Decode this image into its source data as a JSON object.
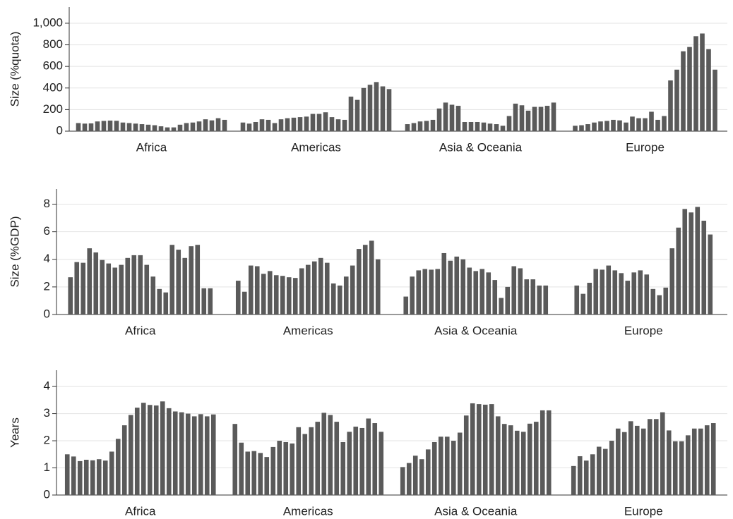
{
  "chart_data": [
    {
      "type": "bar",
      "ylabel": "Size (%quota)",
      "ylim": [
        0,
        1150
      ],
      "yticks": [
        0,
        200,
        400,
        600,
        800,
        {
          "value": 1000,
          "label": "1,000"
        }
      ],
      "grid": true,
      "color": "#5a5a5a",
      "groups": [
        {
          "label": "Africa",
          "values": [
            75,
            70,
            72,
            90,
            95,
            98,
            96,
            80,
            75,
            70,
            65,
            60,
            55,
            45,
            35,
            35,
            60,
            75,
            80,
            90,
            110,
            100,
            120,
            105
          ]
        },
        {
          "label": "Americas",
          "values": [
            80,
            70,
            85,
            110,
            105,
            75,
            110,
            120,
            125,
            130,
            135,
            160,
            160,
            175,
            130,
            110,
            105,
            320,
            290,
            400,
            430,
            455,
            415,
            390
          ]
        },
        {
          "label": "Asia & Oceania",
          "values": [
            65,
            75,
            90,
            95,
            105,
            210,
            265,
            245,
            235,
            85,
            85,
            85,
            80,
            70,
            65,
            50,
            140,
            255,
            240,
            190,
            225,
            225,
            235,
            265
          ]
        },
        {
          "label": "Europe",
          "values": [
            50,
            55,
            65,
            80,
            90,
            95,
            105,
            100,
            80,
            135,
            120,
            120,
            180,
            105,
            140,
            470,
            570,
            740,
            780,
            880,
            905,
            760,
            570
          ]
        }
      ]
    },
    {
      "type": "bar",
      "ylabel": "Size (%GDP)",
      "ylim": [
        0,
        9.1
      ],
      "yticks": [
        0,
        2,
        4,
        6,
        8
      ],
      "grid": true,
      "color": "#5a5a5a",
      "groups": [
        {
          "label": "Africa",
          "values": [
            2.7,
            3.8,
            3.75,
            4.8,
            4.5,
            3.95,
            3.7,
            3.4,
            3.6,
            4.1,
            4.3,
            4.3,
            3.6,
            2.75,
            1.85,
            1.6,
            5.05,
            4.7,
            4.1,
            4.95,
            5.05,
            1.9,
            1.9
          ]
        },
        {
          "label": "Americas",
          "values": [
            2.45,
            1.65,
            3.55,
            3.5,
            2.95,
            3.15,
            2.85,
            2.8,
            2.7,
            2.65,
            3.35,
            3.6,
            3.85,
            4.1,
            3.75,
            2.25,
            2.1,
            2.75,
            3.55,
            4.75,
            5.05,
            5.35,
            4.0
          ]
        },
        {
          "label": "Asia & Oceania",
          "values": [
            1.3,
            2.75,
            3.2,
            3.3,
            3.25,
            3.3,
            4.45,
            3.9,
            4.2,
            4.0,
            3.4,
            3.15,
            3.3,
            3.05,
            2.5,
            1.2,
            2.0,
            3.5,
            3.35,
            2.55,
            2.55,
            2.1,
            2.1
          ]
        },
        {
          "label": "Europe",
          "values": [
            2.1,
            1.5,
            2.3,
            3.3,
            3.25,
            3.55,
            3.2,
            3.0,
            2.45,
            3.05,
            3.2,
            2.9,
            1.85,
            1.4,
            1.95,
            4.8,
            6.3,
            7.65,
            7.4,
            7.8,
            6.8,
            5.8
          ]
        }
      ]
    },
    {
      "type": "bar",
      "ylabel": "Years",
      "ylim": [
        0,
        4.6
      ],
      "yticks": [
        0,
        1,
        2,
        3,
        4
      ],
      "grid": true,
      "color": "#5a5a5a",
      "groups": [
        {
          "label": "Africa",
          "values": [
            1.5,
            1.42,
            1.25,
            1.3,
            1.28,
            1.32,
            1.27,
            1.6,
            2.07,
            2.57,
            2.95,
            3.22,
            3.4,
            3.32,
            3.3,
            3.45,
            3.2,
            3.08,
            3.05,
            3.0,
            2.9,
            2.98,
            2.9,
            2.97
          ]
        },
        {
          "label": "Americas",
          "values": [
            2.62,
            1.93,
            1.6,
            1.62,
            1.55,
            1.4,
            1.77,
            2.0,
            1.95,
            1.9,
            2.5,
            2.25,
            2.5,
            2.7,
            3.03,
            2.95,
            2.7,
            1.95,
            2.33,
            2.52,
            2.47,
            2.82,
            2.65,
            2.33
          ]
        },
        {
          "label": "Asia & Oceania",
          "values": [
            1.03,
            1.18,
            1.45,
            1.32,
            1.68,
            1.95,
            2.15,
            2.15,
            2.0,
            2.3,
            2.93,
            3.38,
            3.35,
            3.33,
            3.35,
            2.9,
            2.62,
            2.57,
            2.37,
            2.33,
            2.63,
            2.7,
            3.12,
            3.12
          ]
        },
        {
          "label": "Europe",
          "values": [
            1.07,
            1.43,
            1.27,
            1.5,
            1.78,
            1.7,
            2.0,
            2.45,
            2.32,
            2.72,
            2.55,
            2.45,
            2.8,
            2.8,
            3.05,
            2.38,
            1.98,
            1.98,
            2.2,
            2.45,
            2.45,
            2.57,
            2.65
          ]
        }
      ]
    }
  ]
}
